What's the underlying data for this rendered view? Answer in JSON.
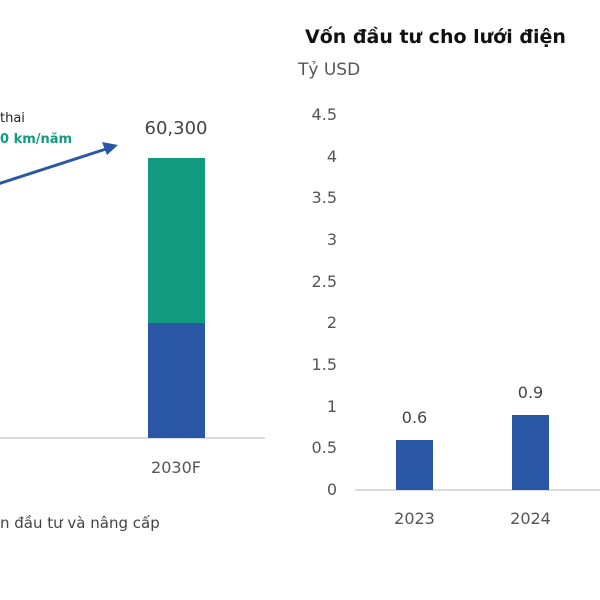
{
  "chart_data": [
    {
      "type": "bar",
      "stacked": true,
      "categories": [
        "2030F"
      ],
      "series": [
        {
          "values": [
            null
          ],
          "color": "#2a56a6"
        },
        {
          "values": [
            null
          ],
          "color": "#119a80"
        }
      ],
      "total_labels": [
        "60,300"
      ],
      "annotation": {
        "line1": "thai",
        "line2": "0 km/năm",
        "line2_color": "#119a80",
        "arrow_color": "#2a56a6"
      },
      "legend_text": "n đầu tư và nâng cấp"
    },
    {
      "type": "bar",
      "title": "Vốn đầu tư cho lưới điện",
      "ylabel": "Tỷ USD",
      "categories": [
        "2023",
        "2024"
      ],
      "values": [
        0.6,
        0.9
      ],
      "data_labels": [
        "0.6",
        "0.9"
      ],
      "ylim": [
        0,
        4.5
      ],
      "yticks": [
        "0",
        "0.5",
        "1",
        "1.5",
        "2",
        "2.5",
        "3",
        "3.5",
        "4",
        "4.5"
      ],
      "color": "#2a56a6",
      "grid": false
    }
  ]
}
